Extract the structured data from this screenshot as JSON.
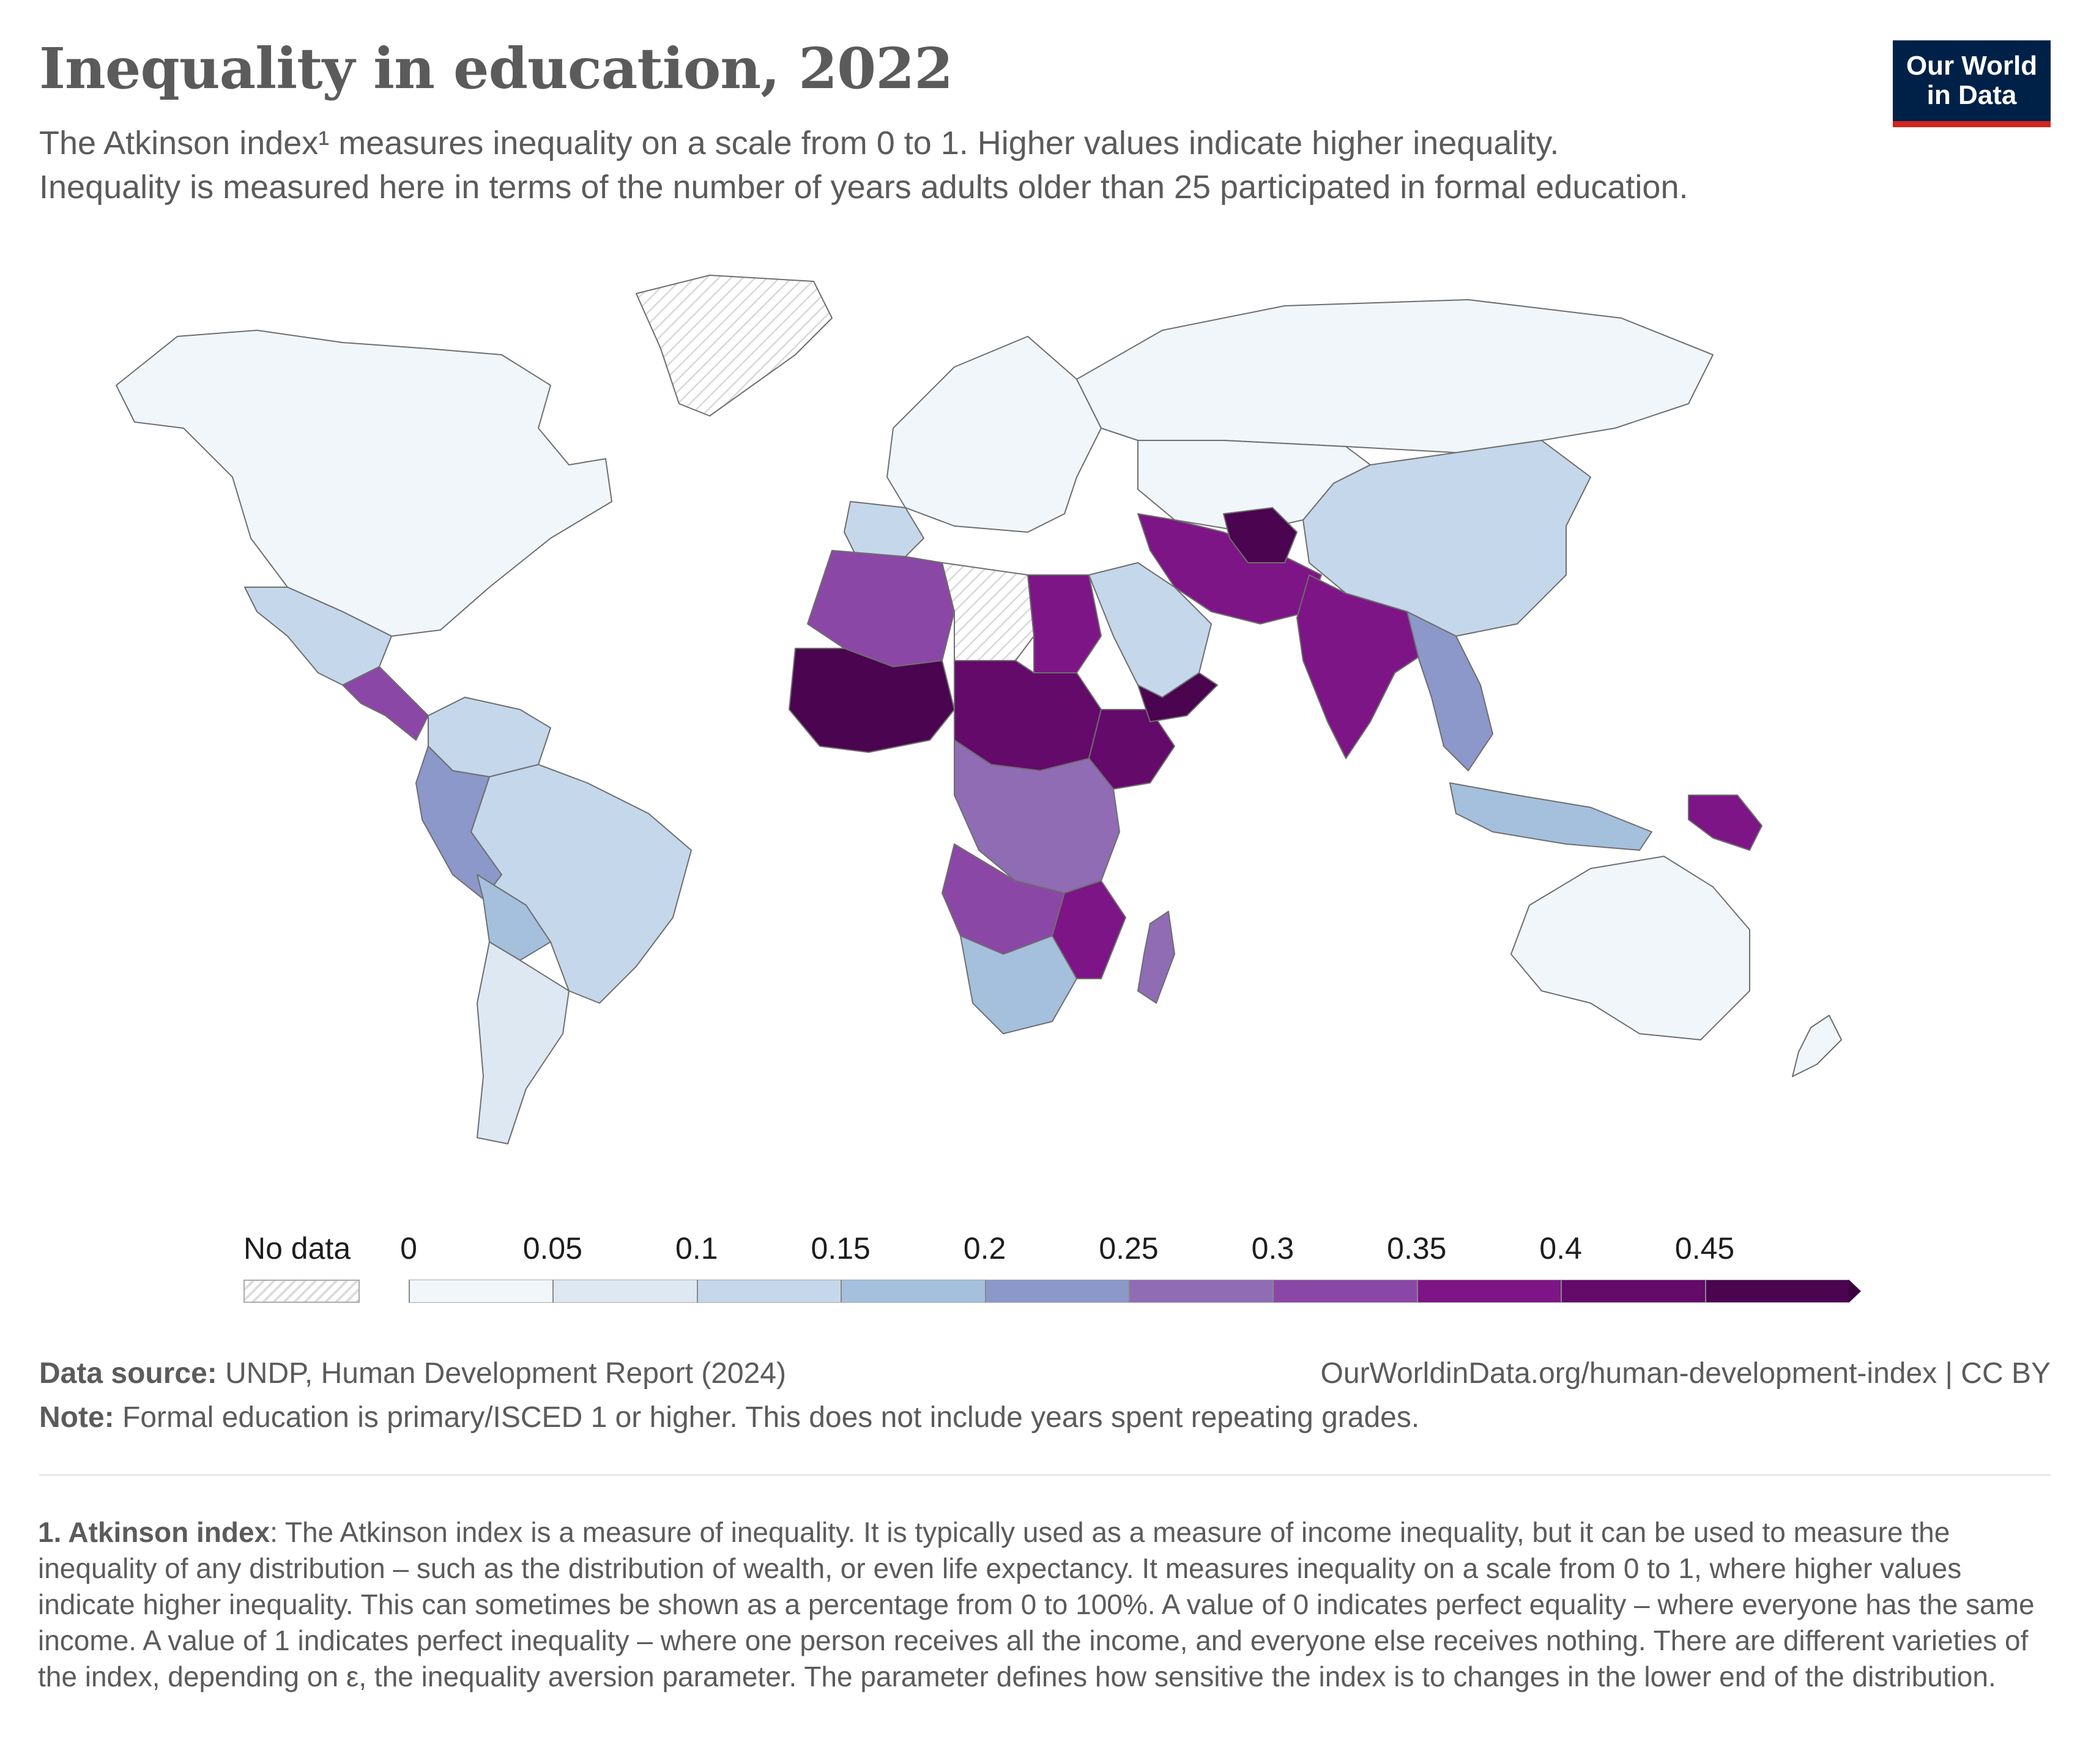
{
  "header": {
    "title": "Inequality in education, 2022",
    "subtitle_line1": "The Atkinson index¹ measures inequality on a scale from 0 to 1. Higher values indicate higher inequality.",
    "subtitle_line2": "Inequality is measured here in terms of the number of years adults older than 25 participated in formal education.",
    "logo_line1": "Our World",
    "logo_line2": "in Data"
  },
  "legend": {
    "nodata_label": "No data",
    "ticks": [
      "0",
      "0.05",
      "0.1",
      "0.15",
      "0.2",
      "0.25",
      "0.3",
      "0.35",
      "0.4",
      "0.45"
    ],
    "colors": [
      "#f1f6fb",
      "#dde8f3",
      "#c5d7eb",
      "#a4c0dd",
      "#8b98c9",
      "#8f6cb4",
      "#8b47a6",
      "#7d1586",
      "#640a6a",
      "#4a0450"
    ]
  },
  "footer": {
    "source_label": "Data source:",
    "source_text": "UNDP, Human Development Report (2024)",
    "url_text": "OurWorldinData.org/human-development-index | CC BY",
    "note_label": "Note:",
    "note_text": "Formal education is primary/ISCED 1 or higher. This does not include years spent repeating grades."
  },
  "footnote": {
    "label": "1. Atkinson index",
    "text": ": The Atkinson index is a measure of inequality. It is typically used as a measure of income inequality, but it can be used to measure the inequality of any distribution – such as the distribution of wealth, or even life expectancy. It measures inequality on a scale from 0 to 1, where higher values indicate higher inequality. This can sometimes be shown as a percentage from 0 to 100%. A value of 0 indicates perfect equality – where everyone has the same income. A value of 1 indicates perfect inequality – where one person receives all the income, and everyone else receives nothing. There are different varieties of the index, depending on ε, the inequality aversion parameter. The parameter defines how sensitive the index is to changes in the lower end of the distribution."
  },
  "map": {
    "regions": [
      {
        "name": "North America",
        "bin": 0
      },
      {
        "name": "Greenland",
        "bin": -1
      },
      {
        "name": "Mexico",
        "bin": 2
      },
      {
        "name": "Central America",
        "bin": 6
      },
      {
        "name": "Colombia-Venezuela",
        "bin": 2
      },
      {
        "name": "Brazil",
        "bin": 2
      },
      {
        "name": "Peru",
        "bin": 4
      },
      {
        "name": "Bolivia",
        "bin": 3
      },
      {
        "name": "Argentina-Chile",
        "bin": 1
      },
      {
        "name": "Europe",
        "bin": 0
      },
      {
        "name": "Iberia",
        "bin": 2
      },
      {
        "name": "Russia",
        "bin": 0
      },
      {
        "name": "China",
        "bin": 2
      },
      {
        "name": "Kazakhstan-Mongolia",
        "bin": 0
      },
      {
        "name": "North Africa west",
        "bin": 6
      },
      {
        "name": "Libya",
        "bin": -1
      },
      {
        "name": "Egypt",
        "bin": 7
      },
      {
        "name": "West Africa",
        "bin": 9
      },
      {
        "name": "Sahel",
        "bin": 8
      },
      {
        "name": "Ethiopia",
        "bin": 8
      },
      {
        "name": "Central Africa",
        "bin": 5
      },
      {
        "name": "Angola-Zambia",
        "bin": 6
      },
      {
        "name": "Southern Africa",
        "bin": 3
      },
      {
        "name": "Mozambique",
        "bin": 7
      },
      {
        "name": "Madagascar",
        "bin": 5
      },
      {
        "name": "Arabia",
        "bin": 2
      },
      {
        "name": "Yemen",
        "bin": 9
      },
      {
        "name": "Iran-Pakistan",
        "bin": 7
      },
      {
        "name": "Afghanistan",
        "bin": 9
      },
      {
        "name": "India",
        "bin": 7
      },
      {
        "name": "Southeast Asia",
        "bin": 4
      },
      {
        "name": "Indonesia",
        "bin": 3
      },
      {
        "name": "Papua New Guinea",
        "bin": 7
      },
      {
        "name": "Australia",
        "bin": 0
      },
      {
        "name": "New Zealand",
        "bin": 0
      }
    ]
  }
}
